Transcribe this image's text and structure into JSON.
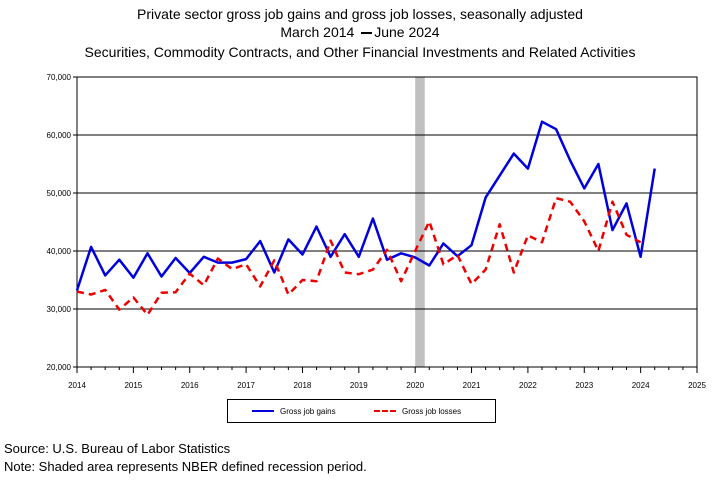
{
  "titles": {
    "line1": "Private sector gross job gains and gross job losses, seasonally adjusted",
    "line2_start": "March 2014",
    "line2_end": "June 2024",
    "line3": "Securities, Commodity Contracts, and Other Financial Investments and Related Activities"
  },
  "footer": {
    "source": "Source: U.S. Bureau of Labor Statistics",
    "note": "Note: Shaded area represents NBER defined recession period."
  },
  "colors": {
    "gains": "#0000dd",
    "losses": "#ee0000",
    "recession": "#c0c0c0",
    "grid": "#000000"
  },
  "chart_data": {
    "type": "line",
    "x_start": 2014.0,
    "x_step": 0.25,
    "xlim": [
      2014,
      2025
    ],
    "ylim": [
      20000,
      70000
    ],
    "y_ticks": [
      "20,000",
      "30,000",
      "40,000",
      "50,000",
      "60,000",
      "70,000"
    ],
    "x_ticks": [
      "2014",
      "2015",
      "2016",
      "2017",
      "2018",
      "2019",
      "2020",
      "2021",
      "2022",
      "2023",
      "2024",
      "2025"
    ],
    "recession": [
      2020.0,
      2020.17
    ],
    "grid": true,
    "legend_position": "bottom",
    "series": [
      {
        "name": "Gross job gains",
        "color_key": "gains",
        "style": "solid",
        "values": [
          33200,
          40700,
          35800,
          38500,
          35400,
          39600,
          35600,
          38800,
          36200,
          39000,
          38000,
          38000,
          38600,
          41700,
          36300,
          42000,
          39400,
          44200,
          39000,
          42900,
          39000,
          45600,
          38500,
          39600,
          38900,
          37500,
          41300,
          39100,
          41000,
          49200,
          53000,
          56800,
          54200,
          62300,
          61000,
          55600,
          50800,
          55000,
          43600,
          48200,
          39000,
          54200
        ]
      },
      {
        "name": "Gross job losses",
        "color_key": "losses",
        "style": "dashed",
        "values": [
          33000,
          32500,
          33300,
          29900,
          32000,
          29000,
          32800,
          32900,
          36100,
          34100,
          38700,
          36900,
          37700,
          33900,
          38400,
          32500,
          35000,
          34800,
          41800,
          36300,
          36000,
          36800,
          40200,
          34800,
          40000,
          45100,
          37700,
          39300,
          34300,
          36800,
          44600,
          36300,
          42700,
          41500,
          49100,
          48500,
          45100,
          40000,
          48500,
          42800,
          41500,
          null
        ]
      }
    ]
  }
}
